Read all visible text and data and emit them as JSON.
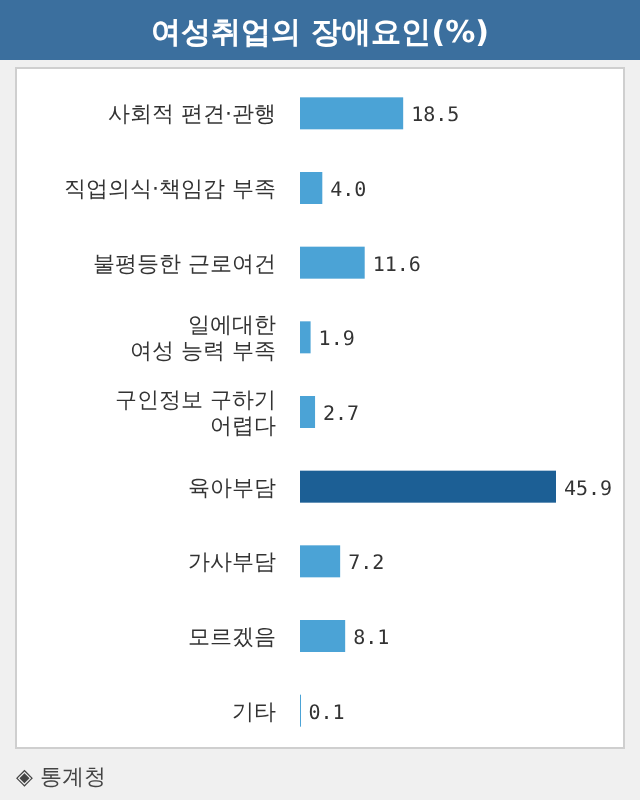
{
  "chart_data": {
    "type": "bar",
    "orientation": "horizontal",
    "title": "여성취업의 장애요인(%)",
    "categories": [
      "사회적 편견·관행",
      "직업의식·책임감 부족",
      "불평등한 근로여건",
      "일에대한\n여성 능력 부족",
      "구인정보 구하기\n어렵다",
      "육아부담",
      "가사부담",
      "모르겠음",
      "기타"
    ],
    "values": [
      18.5,
      4.0,
      11.6,
      1.9,
      2.7,
      45.9,
      7.2,
      8.1,
      0.1
    ],
    "colors": [
      "#4ba3d6",
      "#4ba3d6",
      "#4ba3d6",
      "#4ba3d6",
      "#4ba3d6",
      "#1c5f95",
      "#4ba3d6",
      "#4ba3d6",
      "#4ba3d6"
    ],
    "value_labels": [
      "18.5",
      "4.0",
      "11.6",
      "1.9",
      "2.7",
      "45.9",
      "7.2",
      "8.1",
      "0.1"
    ],
    "annotations": [
      "◈ 통계청"
    ]
  }
}
